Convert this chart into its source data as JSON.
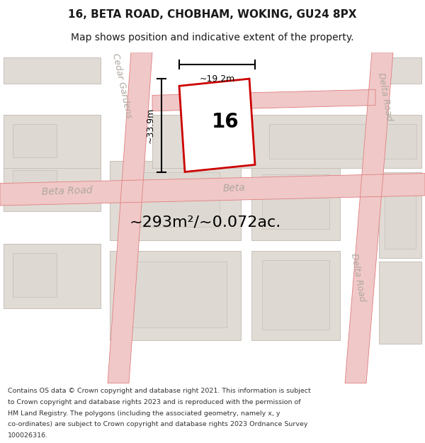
{
  "title": "16, BETA ROAD, CHOBHAM, WOKING, GU24 8PX",
  "subtitle": "Map shows position and indicative extent of the property.",
  "footer_lines": [
    "Contains OS data © Crown copyright and database right 2021. This information is subject",
    "to Crown copyright and database rights 2023 and is reproduced with the permission of",
    "HM Land Registry. The polygons (including the associated geometry, namely x, y",
    "co-ordinates) are subject to Crown copyright and database rights 2023 Ordnance Survey",
    "100026316."
  ],
  "area_label": "~293m²/~0.072ac.",
  "width_label": "~19.2m",
  "height_label": "~33.9m",
  "property_number": "16",
  "map_bg": "#f5f2ee",
  "road_color": "#f0c8c8",
  "road_edge_color": "#e08080",
  "building_color": "#e0dbd5",
  "building_inner_color": "#ddd8d2",
  "building_edge": "#c8c0b8",
  "property_outline_color": "#cc0000",
  "road_label_color": "#b0a8a0",
  "text_color": "#1a1a1a",
  "title_fontsize": 11,
  "subtitle_fontsize": 10,
  "footer_fontsize": 6.8,
  "area_fontsize": 16,
  "property_num_fontsize": 20,
  "road_label_fontsize": 10,
  "dim_label_fontsize": 9
}
